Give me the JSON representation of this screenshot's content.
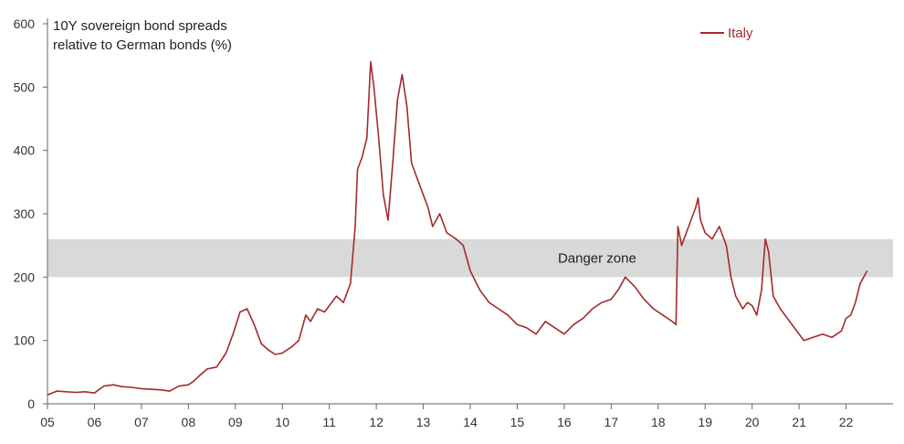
{
  "chart_data": {
    "type": "line",
    "title": "10Y sovereign bond spreads",
    "subtitle": "relative to German bonds (%)",
    "xlabel": "",
    "ylabel": "",
    "xlim": [
      2005,
      2023
    ],
    "ylim": [
      0,
      600
    ],
    "y_ticks": [
      0,
      100,
      200,
      300,
      400,
      500,
      600
    ],
    "x_ticks": [
      {
        "value": 2005,
        "label": "05"
      },
      {
        "value": 2006,
        "label": "06"
      },
      {
        "value": 2007,
        "label": "07"
      },
      {
        "value": 2008,
        "label": "08"
      },
      {
        "value": 2009,
        "label": "09"
      },
      {
        "value": 2010,
        "label": "10"
      },
      {
        "value": 2011,
        "label": "11"
      },
      {
        "value": 2012,
        "label": "12"
      },
      {
        "value": 2013,
        "label": "13"
      },
      {
        "value": 2014,
        "label": "14"
      },
      {
        "value": 2015,
        "label": "15"
      },
      {
        "value": 2016,
        "label": "16"
      },
      {
        "value": 2017,
        "label": "17"
      },
      {
        "value": 2018,
        "label": "18"
      },
      {
        "value": 2019,
        "label": "19"
      },
      {
        "value": 2020,
        "label": "20"
      },
      {
        "value": 2021,
        "label": "21"
      },
      {
        "value": 2022,
        "label": "22"
      }
    ],
    "grid": false,
    "legend_position": "top-right",
    "band": {
      "label": "Danger zone",
      "y_from": 200,
      "y_to": 260,
      "color": "#d9d9d9"
    },
    "series": [
      {
        "name": "Italy",
        "color": "#a52a2a",
        "x": [
          2005.0,
          2005.2,
          2005.4,
          2005.6,
          2005.8,
          2006.0,
          2006.2,
          2006.4,
          2006.6,
          2006.8,
          2007.0,
          2007.2,
          2007.4,
          2007.6,
          2007.8,
          2008.0,
          2008.1,
          2008.2,
          2008.4,
          2008.6,
          2008.8,
          2008.95,
          2009.1,
          2009.25,
          2009.4,
          2009.55,
          2009.7,
          2009.85,
          2010.0,
          2010.2,
          2010.35,
          2010.5,
          2010.6,
          2010.75,
          2010.9,
          2011.0,
          2011.15,
          2011.3,
          2011.45,
          2011.55,
          2011.6,
          2011.7,
          2011.8,
          2011.88,
          2011.95,
          2012.05,
          2012.15,
          2012.25,
          2012.35,
          2012.45,
          2012.55,
          2012.65,
          2012.75,
          2012.85,
          2012.95,
          2013.1,
          2013.2,
          2013.35,
          2013.5,
          2013.7,
          2013.85,
          2014.0,
          2014.2,
          2014.4,
          2014.6,
          2014.8,
          2015.0,
          2015.2,
          2015.4,
          2015.6,
          2015.8,
          2016.0,
          2016.2,
          2016.4,
          2016.6,
          2016.8,
          2017.0,
          2017.15,
          2017.3,
          2017.5,
          2017.7,
          2017.9,
          2018.1,
          2018.3,
          2018.38,
          2018.42,
          2018.5,
          2018.6,
          2018.7,
          2018.8,
          2018.85,
          2018.9,
          2019.0,
          2019.15,
          2019.3,
          2019.45,
          2019.55,
          2019.65,
          2019.8,
          2019.9,
          2020.0,
          2020.1,
          2020.2,
          2020.28,
          2020.35,
          2020.45,
          2020.6,
          2020.8,
          2021.0,
          2021.1,
          2021.3,
          2021.5,
          2021.7,
          2021.9,
          2022.0,
          2022.1,
          2022.2,
          2022.3,
          2022.45
        ],
        "y": [
          14,
          20,
          19,
          18,
          19,
          17,
          28,
          30,
          27,
          26,
          24,
          23,
          22,
          20,
          28,
          30,
          35,
          42,
          55,
          58,
          80,
          110,
          145,
          150,
          125,
          95,
          85,
          78,
          80,
          90,
          100,
          140,
          130,
          150,
          145,
          155,
          170,
          160,
          190,
          280,
          370,
          390,
          420,
          540,
          500,
          420,
          330,
          290,
          380,
          480,
          520,
          470,
          380,
          360,
          340,
          310,
          280,
          300,
          270,
          260,
          250,
          210,
          180,
          160,
          150,
          140,
          125,
          120,
          110,
          130,
          120,
          110,
          125,
          135,
          150,
          160,
          165,
          180,
          200,
          185,
          165,
          150,
          140,
          130,
          125,
          280,
          250,
          270,
          290,
          310,
          325,
          290,
          270,
          260,
          280,
          250,
          200,
          170,
          150,
          160,
          155,
          140,
          180,
          260,
          240,
          170,
          150,
          130,
          110,
          100,
          105,
          110,
          105,
          115,
          135,
          140,
          160,
          190,
          210
        ]
      }
    ]
  }
}
